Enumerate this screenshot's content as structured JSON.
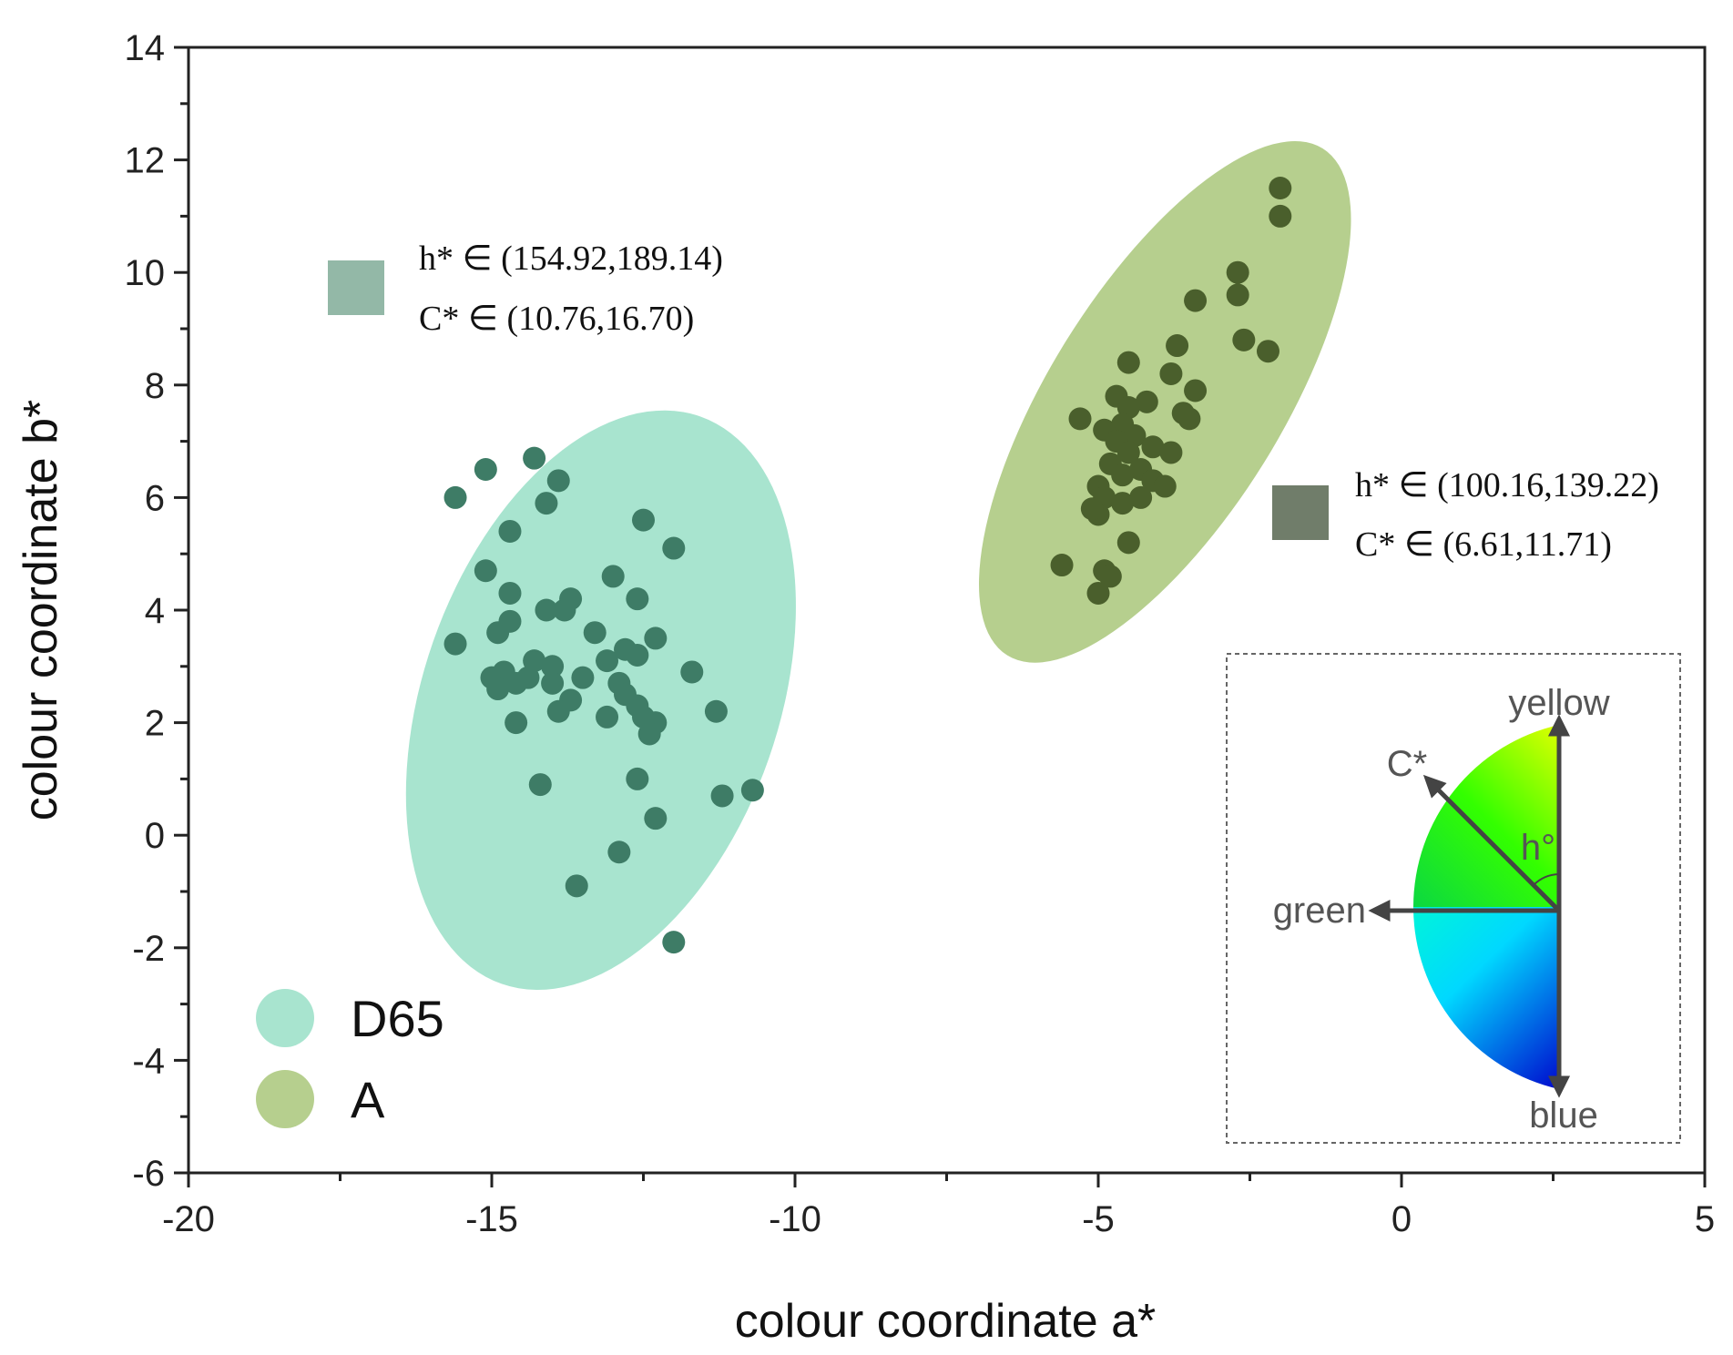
{
  "chart_data": {
    "type": "scatter",
    "xlabel": "colour coordinate a*",
    "ylabel": "colour coordinate b*",
    "xlim": [
      -20,
      5
    ],
    "ylim": [
      -6,
      14
    ],
    "x_ticks": [
      -20,
      -15,
      -10,
      -5,
      0,
      5
    ],
    "y_ticks": [
      -6,
      -4,
      -2,
      0,
      2,
      4,
      6,
      8,
      10,
      12,
      14
    ],
    "series": [
      {
        "name": "D65",
        "ellipse_color": "#a8e4cf",
        "point_color": "#3e7c66",
        "ellipse": {
          "center": [
            -13.2,
            2.4
          ],
          "semi_major": 5.3,
          "semi_minor": 2.95,
          "rotation_deg": 72
        },
        "points": [
          [
            -15.6,
            6.0
          ],
          [
            -15.1,
            6.5
          ],
          [
            -14.3,
            6.7
          ],
          [
            -13.9,
            6.3
          ],
          [
            -14.1,
            5.9
          ],
          [
            -14.7,
            5.4
          ],
          [
            -12.5,
            5.6
          ],
          [
            -12.0,
            5.1
          ],
          [
            -15.1,
            4.7
          ],
          [
            -14.7,
            4.3
          ],
          [
            -13.0,
            4.6
          ],
          [
            -12.6,
            4.2
          ],
          [
            -13.7,
            4.2
          ],
          [
            -13.8,
            4.0
          ],
          [
            -14.1,
            4.0
          ],
          [
            -14.9,
            3.6
          ],
          [
            -14.7,
            3.8
          ],
          [
            -13.3,
            3.6
          ],
          [
            -15.6,
            3.4
          ],
          [
            -12.8,
            3.3
          ],
          [
            -12.3,
            3.5
          ],
          [
            -12.6,
            3.2
          ],
          [
            -13.1,
            3.1
          ],
          [
            -14.3,
            3.1
          ],
          [
            -14.0,
            3.0
          ],
          [
            -14.8,
            2.9
          ],
          [
            -15.0,
            2.8
          ],
          [
            -14.6,
            2.7
          ],
          [
            -14.9,
            2.6
          ],
          [
            -14.4,
            2.8
          ],
          [
            -14.0,
            2.7
          ],
          [
            -13.5,
            2.8
          ],
          [
            -12.9,
            2.7
          ],
          [
            -11.7,
            2.9
          ],
          [
            -12.8,
            2.5
          ],
          [
            -12.6,
            2.3
          ],
          [
            -13.7,
            2.4
          ],
          [
            -13.9,
            2.2
          ],
          [
            -12.5,
            2.1
          ],
          [
            -12.3,
            2.0
          ],
          [
            -13.1,
            2.1
          ],
          [
            -11.3,
            2.2
          ],
          [
            -12.4,
            1.8
          ],
          [
            -14.6,
            2.0
          ],
          [
            -14.2,
            0.9
          ],
          [
            -12.6,
            1.0
          ],
          [
            -11.2,
            0.7
          ],
          [
            -10.7,
            0.8
          ],
          [
            -12.3,
            0.3
          ],
          [
            -12.9,
            -0.3
          ],
          [
            -13.6,
            -0.9
          ],
          [
            -12.0,
            -1.9
          ]
        ]
      },
      {
        "name": "A",
        "ellipse_color": "#b6cf8e",
        "point_color": "#4a5f2c",
        "ellipse": {
          "center": [
            -3.9,
            7.7
          ],
          "semi_major": 5.2,
          "semi_minor": 1.95,
          "rotation_deg": 60
        },
        "points": [
          [
            -2.0,
            11.5
          ],
          [
            -2.0,
            11.0
          ],
          [
            -2.7,
            10.0
          ],
          [
            -3.4,
            9.5
          ],
          [
            -2.7,
            9.6
          ],
          [
            -2.6,
            8.8
          ],
          [
            -2.2,
            8.6
          ],
          [
            -3.7,
            8.7
          ],
          [
            -4.5,
            8.4
          ],
          [
            -3.8,
            8.2
          ],
          [
            -3.4,
            7.9
          ],
          [
            -4.7,
            7.8
          ],
          [
            -4.2,
            7.7
          ],
          [
            -4.5,
            7.6
          ],
          [
            -5.3,
            7.4
          ],
          [
            -3.6,
            7.5
          ],
          [
            -3.5,
            7.4
          ],
          [
            -4.6,
            7.3
          ],
          [
            -4.9,
            7.2
          ],
          [
            -4.4,
            7.1
          ],
          [
            -4.7,
            7.0
          ],
          [
            -4.1,
            6.9
          ],
          [
            -3.8,
            6.8
          ],
          [
            -4.5,
            6.8
          ],
          [
            -4.8,
            6.6
          ],
          [
            -4.3,
            6.5
          ],
          [
            -4.6,
            6.4
          ],
          [
            -5.0,
            6.2
          ],
          [
            -4.1,
            6.3
          ],
          [
            -4.9,
            6.0
          ],
          [
            -4.3,
            6.0
          ],
          [
            -5.0,
            5.7
          ],
          [
            -4.6,
            5.9
          ],
          [
            -4.5,
            5.2
          ],
          [
            -5.6,
            4.8
          ],
          [
            -4.9,
            4.7
          ],
          [
            -4.8,
            4.6
          ],
          [
            -5.0,
            4.3
          ],
          [
            -5.1,
            5.8
          ],
          [
            -3.9,
            6.2
          ]
        ]
      }
    ],
    "annotations": [
      {
        "series": "D65",
        "swatch_color": "#93b8a7",
        "h_text": "h* ∈ (154.92,189.14)",
        "c_text": "C* ∈ (10.76,16.70)"
      },
      {
        "series": "A",
        "swatch_color": "#707d6a",
        "h_text": "h* ∈ (100.16,139.22)",
        "c_text": "C* ∈ (6.61,11.71)"
      }
    ],
    "legend": {
      "position": "bottom-left",
      "entries": [
        "D65",
        "A"
      ]
    },
    "inset": {
      "description_labels": {
        "yellow": "yellow",
        "green": "green",
        "blue": "blue",
        "chroma": "C*",
        "hue": "h°"
      }
    }
  }
}
